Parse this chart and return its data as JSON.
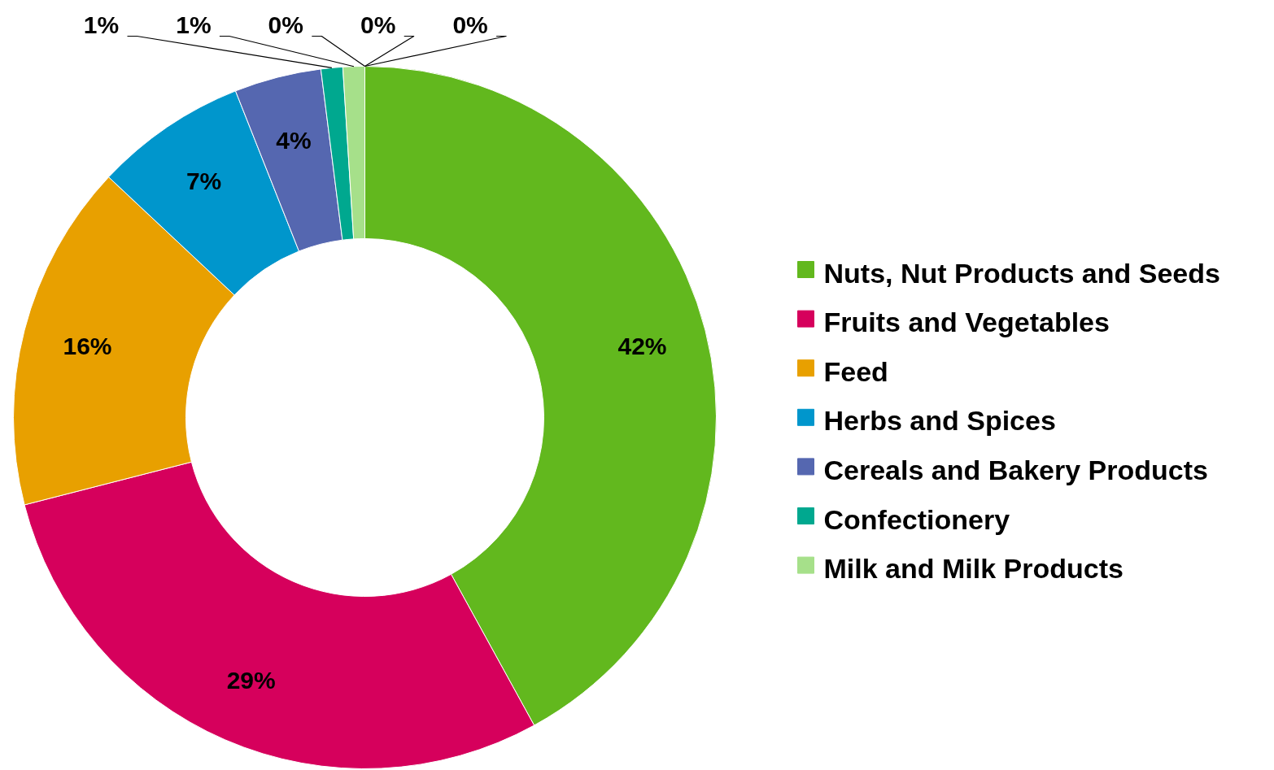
{
  "chart_data": {
    "type": "donut",
    "categories": [
      "Nuts, Nut Products and Seeds",
      "Fruits and Vegetables",
      "Feed",
      "Herbs and Spices",
      "Cereals and Bakery Products",
      "Confectionery",
      "Milk and Milk Products",
      null,
      null,
      null
    ],
    "values": [
      42,
      29,
      16,
      7,
      4,
      1,
      1,
      0,
      0,
      0
    ],
    "colors": [
      "#62b81e",
      "#d6005c",
      "#e8a000",
      "#0096cc",
      "#5567b0",
      "#00a88f",
      "#a6e08a",
      "#8064a2",
      "#4bacc6",
      "#f79646"
    ],
    "value_labels": [
      "42%",
      "29%",
      "16%",
      "7%",
      "4%",
      "1%",
      "1%",
      "0%",
      "0%",
      "0%"
    ],
    "legend": "right"
  }
}
